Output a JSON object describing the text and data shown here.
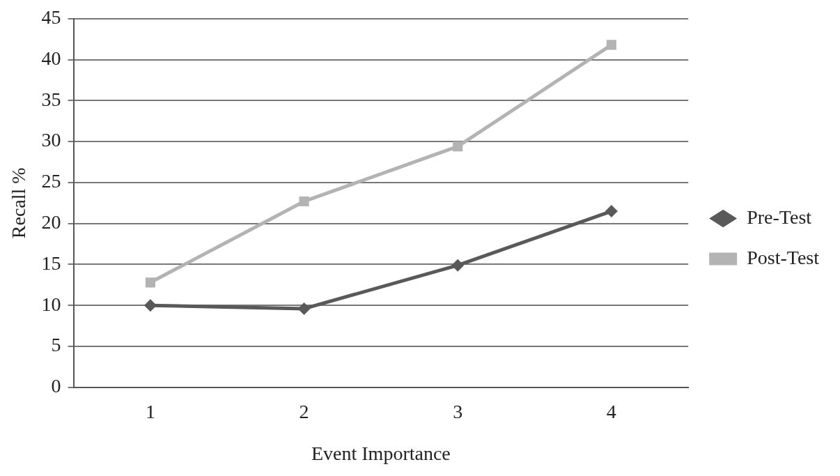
{
  "chart_data": {
    "type": "line",
    "xlabel": "Event Importance",
    "ylabel": "Recall %",
    "categories": [
      "1",
      "2",
      "3",
      "4"
    ],
    "series": [
      {
        "name": "Pre-Test",
        "color": "#595959",
        "marker": "diamond",
        "values": [
          10,
          9.6,
          14.9,
          21.5
        ]
      },
      {
        "name": "Post-Test",
        "color": "#b3b3b3",
        "marker": "square",
        "values": [
          12.8,
          22.7,
          29.4,
          41.8
        ]
      }
    ],
    "ylim": [
      0,
      45
    ],
    "yticks": [
      0,
      5,
      10,
      15,
      20,
      25,
      30,
      35,
      40,
      45
    ],
    "grid": "y",
    "legend": "right",
    "line_style": "solid"
  }
}
